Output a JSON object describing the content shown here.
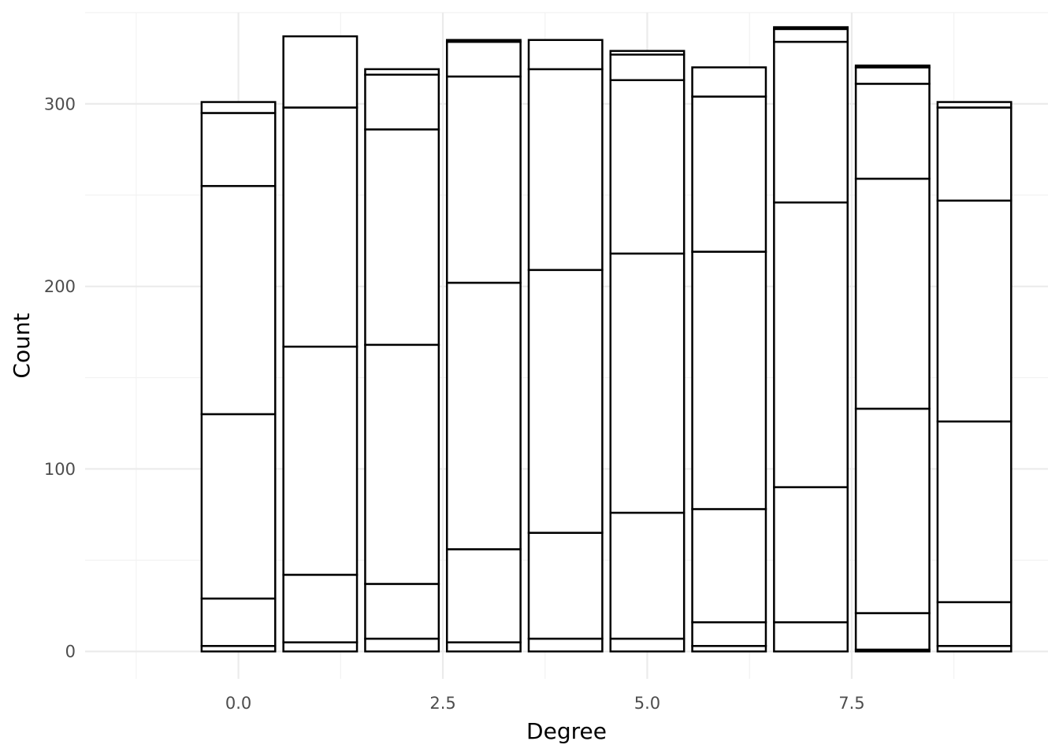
{
  "chart_data": {
    "type": "bar",
    "stacked": true,
    "xlabel": "Degree",
    "ylabel": "Count",
    "xlim": [
      -1.875,
      9.9
    ],
    "ylim": [
      -15,
      350
    ],
    "x_ticks": [
      0.0,
      2.5,
      5.0,
      7.5
    ],
    "x_tick_labels": [
      "0.0",
      "2.5",
      "5.0",
      "7.5"
    ],
    "y_ticks": [
      0,
      100,
      200,
      300
    ],
    "y_tick_labels": [
      "0",
      "100",
      "200",
      "300"
    ],
    "grid": true,
    "legend": "none",
    "colors": {
      "bar_fill": "#ffffff",
      "bar_outline": "#000000",
      "grid": "#ebebeb",
      "tick_text": "#4d4d4d",
      "title_text": "#000000"
    },
    "categories": [
      0,
      1,
      2,
      3,
      4,
      5,
      6,
      7,
      8,
      9
    ],
    "stack_boundaries": [
      [
        0,
        3,
        29,
        130,
        255,
        295,
        301
      ],
      [
        0,
        5,
        42,
        167,
        298,
        337
      ],
      [
        0,
        7,
        37,
        168,
        286,
        316,
        319
      ],
      [
        0,
        5,
        56,
        202,
        315,
        334,
        335
      ],
      [
        0,
        7,
        65,
        209,
        319,
        335
      ],
      [
        0,
        7,
        76,
        218,
        313,
        327,
        329
      ],
      [
        0,
        3,
        16,
        78,
        219,
        304,
        320
      ],
      [
        0,
        16,
        90,
        246,
        334,
        341,
        342
      ],
      [
        0,
        1,
        21,
        133,
        259,
        311,
        320,
        321
      ],
      [
        0,
        3,
        27,
        126,
        247,
        298,
        301
      ]
    ],
    "totals": [
      301,
      337,
      319,
      335,
      335,
      329,
      320,
      342,
      321,
      301
    ]
  }
}
